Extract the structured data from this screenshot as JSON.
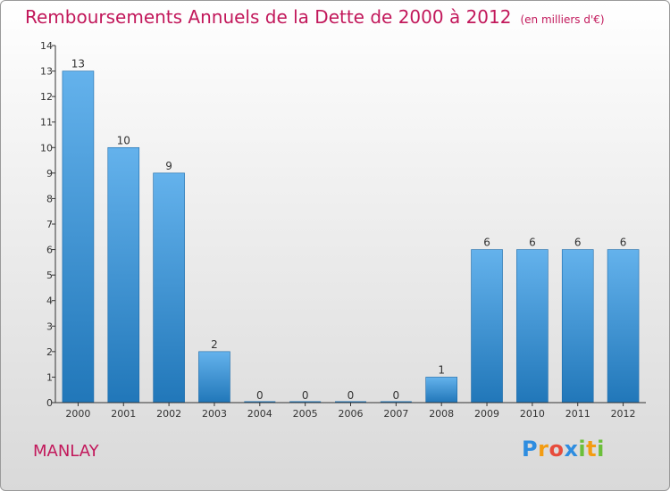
{
  "header": {
    "title": "Remboursements Annuels de la Dette de 2000 à 2012",
    "unit": "(en milliers d'€)"
  },
  "commune": "MANLAY",
  "logo": {
    "letters": [
      "P",
      "r",
      "o",
      "x",
      "i",
      "t",
      "i"
    ],
    "colors": [
      "#2e8de0",
      "#f39c12",
      "#e74c3c",
      "#2e8de0",
      "#6bbf3a",
      "#f39c12",
      "#6bbf3a"
    ]
  },
  "colors": {
    "title": "#c2185b",
    "bar_top": "#64b2ec",
    "bar_bottom": "#2177b9",
    "axis": "#333333"
  },
  "chart_data": {
    "type": "bar",
    "title": "Remboursements Annuels de la Dette de 2000 à 2012",
    "ylabel": "en milliers d'€",
    "xlabel": "",
    "categories": [
      "2000",
      "2001",
      "2002",
      "2003",
      "2004",
      "2005",
      "2006",
      "2007",
      "2008",
      "2009",
      "2010",
      "2011",
      "2012"
    ],
    "values": [
      13,
      10,
      9,
      2,
      0,
      0,
      0,
      0,
      1,
      6,
      6,
      6,
      6
    ],
    "ylim": [
      0,
      14
    ],
    "yticks": [
      0,
      1,
      2,
      3,
      4,
      5,
      6,
      7,
      8,
      9,
      10,
      11,
      12,
      13,
      14
    ],
    "grid": false,
    "legend": "none"
  }
}
